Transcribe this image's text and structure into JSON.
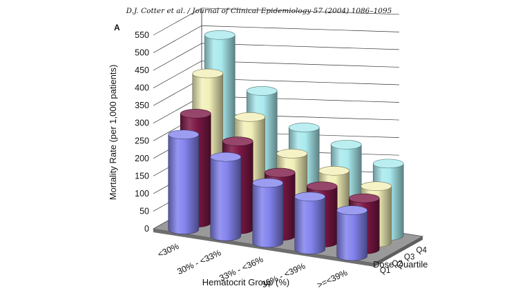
{
  "header": "D.J. Cotter et al. / Journal of Clinical Epidemiology 57 (2004) 1086–1095",
  "panel_label": "A",
  "chart_data": {
    "type": "bar",
    "style": "3d-cylinder",
    "ylabel": "Mortality Rate (per 1,000 patients)",
    "xlabel": "Hematocrit Group (%)",
    "depth_label": "Dose Quartile",
    "ylim": [
      0,
      550
    ],
    "yticks": [
      0,
      50,
      100,
      150,
      200,
      250,
      300,
      350,
      400,
      450,
      500,
      550
    ],
    "grid": true,
    "categories": [
      "<30%",
      "30% - <33%",
      "33% - <36%",
      "36% - <39%",
      ">=<39%"
    ],
    "series": [
      {
        "name": "Q1",
        "color": "#8383ee",
        "values": [
          270,
          225,
          170,
          150,
          130
        ]
      },
      {
        "name": "Q2",
        "color": "#7c1845",
        "values": [
          310,
          250,
          180,
          160,
          145
        ]
      },
      {
        "name": "Q3",
        "color": "#f2f0b8",
        "values": [
          405,
          300,
          215,
          185,
          160
        ]
      },
      {
        "name": "Q4",
        "color": "#a9eaee",
        "values": [
          495,
          355,
          270,
          240,
          205
        ]
      }
    ]
  }
}
